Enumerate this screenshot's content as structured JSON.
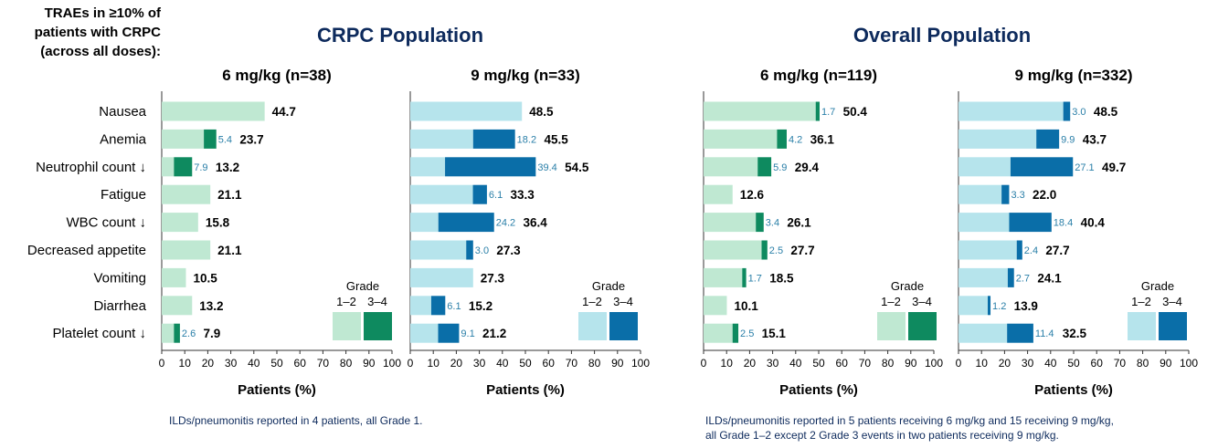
{
  "side_title": [
    "TRAEs in ≥10% of",
    "patients with CRPC",
    "(across all doses):"
  ],
  "section_titles": {
    "crpc": "CRPC Population",
    "overall": "Overall Population"
  },
  "footnotes": {
    "crpc": "ILDs/pneumonitis reported in 4 patients, all Grade 1.",
    "overall": [
      "ILDs/pneumonitis reported in 5 patients receiving 6 mg/kg and 15 receiving 9 mg/kg,",
      "all Grade 1–2 except 2 Grade 3 events in two patients receiving 9 mg/kg."
    ]
  },
  "legend": {
    "title": "Grade",
    "low_label": "1–2",
    "high_label": "3–4"
  },
  "colors": {
    "green_light": "#bfe8d2",
    "green_dark": "#0e8a5f",
    "blue_light": "#b6e4ec",
    "blue_dark": "#0a6ea8",
    "small_label": "#2a7fa8",
    "title_navy": "#0d2a5c"
  },
  "chart_data": [
    {
      "type": "bar",
      "orientation": "horizontal",
      "stacked": true,
      "population": "CRPC Population",
      "title": "6 mg/kg (n=38)",
      "xlabel": "Patients (%)",
      "xlim": [
        0,
        100
      ],
      "xticks": [
        0,
        10,
        20,
        30,
        40,
        50,
        60,
        70,
        80,
        90,
        100
      ],
      "palette": "green",
      "categories": [
        "Nausea",
        "Anemia",
        "Neutrophil count ↓",
        "Fatigue",
        "WBC count ↓",
        "Decreased appetite",
        "Vomiting",
        "Diarrhea",
        "Platelet count ↓"
      ],
      "series": [
        {
          "name": "Grade 3–4",
          "values": [
            0,
            5.4,
            7.9,
            0,
            0,
            0,
            0,
            0,
            2.6
          ]
        },
        {
          "name": "Total",
          "values": [
            44.7,
            23.7,
            13.2,
            21.1,
            15.8,
            21.1,
            10.5,
            13.2,
            7.9
          ]
        }
      ],
      "grade34_labels": [
        "",
        "5.4",
        "7.9",
        "",
        "",
        "",
        "",
        "",
        "2.6"
      ],
      "total_labels": [
        "44.7",
        "23.7",
        "13.2",
        "21.1",
        "15.8",
        "21.1",
        "10.5",
        "13.2",
        "7.9"
      ]
    },
    {
      "type": "bar",
      "orientation": "horizontal",
      "stacked": true,
      "population": "CRPC Population",
      "title": "9 mg/kg (n=33)",
      "xlabel": "Patients (%)",
      "xlim": [
        0,
        100
      ],
      "xticks": [
        0,
        10,
        20,
        30,
        40,
        50,
        60,
        70,
        80,
        90,
        100
      ],
      "palette": "blue",
      "categories": [
        "Nausea",
        "Anemia",
        "Neutrophil count ↓",
        "Fatigue",
        "WBC count ↓",
        "Decreased appetite",
        "Vomiting",
        "Diarrhea",
        "Platelet count ↓"
      ],
      "series": [
        {
          "name": "Grade 3–4",
          "values": [
            0,
            18.2,
            39.4,
            6.1,
            24.2,
            3.0,
            0,
            6.1,
            9.1
          ]
        },
        {
          "name": "Total",
          "values": [
            48.5,
            45.5,
            54.5,
            33.3,
            36.4,
            27.3,
            27.3,
            15.2,
            21.2
          ]
        }
      ],
      "grade34_labels": [
        "",
        "18.2",
        "39.4",
        "6.1",
        "24.2",
        "3.0",
        "",
        "6.1",
        "9.1"
      ],
      "total_labels": [
        "48.5",
        "45.5",
        "54.5",
        "33.3",
        "36.4",
        "27.3",
        "27.3",
        "15.2",
        "21.2"
      ]
    },
    {
      "type": "bar",
      "orientation": "horizontal",
      "stacked": true,
      "population": "Overall Population",
      "title": "6 mg/kg (n=119)",
      "xlabel": "Patients (%)",
      "xlim": [
        0,
        100
      ],
      "xticks": [
        0,
        10,
        20,
        30,
        40,
        50,
        60,
        70,
        80,
        90,
        100
      ],
      "palette": "green",
      "categories": [
        "Nausea",
        "Anemia",
        "Neutrophil count ↓",
        "Fatigue",
        "WBC count ↓",
        "Decreased appetite",
        "Vomiting",
        "Diarrhea",
        "Platelet count ↓"
      ],
      "series": [
        {
          "name": "Grade 3–4",
          "values": [
            1.7,
            4.2,
            5.9,
            0,
            3.4,
            2.5,
            1.7,
            0,
            2.5
          ]
        },
        {
          "name": "Total",
          "values": [
            50.4,
            36.1,
            29.4,
            12.6,
            26.1,
            27.7,
            18.5,
            10.1,
            15.1
          ]
        }
      ],
      "grade34_labels": [
        "1.7",
        "4.2",
        "5.9",
        "",
        "3.4",
        "2.5",
        "1.7",
        "",
        "2.5"
      ],
      "total_labels": [
        "50.4",
        "36.1",
        "29.4",
        "12.6",
        "26.1",
        "27.7",
        "18.5",
        "10.1",
        "15.1"
      ]
    },
    {
      "type": "bar",
      "orientation": "horizontal",
      "stacked": true,
      "population": "Overall Population",
      "title": "9 mg/kg (n=332)",
      "xlabel": "Patients (%)",
      "xlim": [
        0,
        100
      ],
      "xticks": [
        0,
        10,
        20,
        30,
        40,
        50,
        60,
        70,
        80,
        90,
        100
      ],
      "palette": "blue",
      "categories": [
        "Nausea",
        "Anemia",
        "Neutrophil count ↓",
        "Fatigue",
        "WBC count ↓",
        "Decreased appetite",
        "Vomiting",
        "Diarrhea",
        "Platelet count ↓"
      ],
      "series": [
        {
          "name": "Grade 3–4",
          "values": [
            3.0,
            9.9,
            27.1,
            3.3,
            18.4,
            2.4,
            2.7,
            1.2,
            11.4
          ]
        },
        {
          "name": "Total",
          "values": [
            48.5,
            43.7,
            49.7,
            22.0,
            40.4,
            27.7,
            24.1,
            13.9,
            32.5
          ]
        }
      ],
      "grade34_labels": [
        "3.0",
        "9.9",
        "27.1",
        "3.3",
        "18.4",
        "2.4",
        "2.7",
        "1.2",
        "11.4"
      ],
      "total_labels": [
        "48.5",
        "43.7",
        "49.7",
        "22.0",
        "40.4",
        "27.7",
        "24.1",
        "13.9",
        "32.5"
      ]
    }
  ]
}
